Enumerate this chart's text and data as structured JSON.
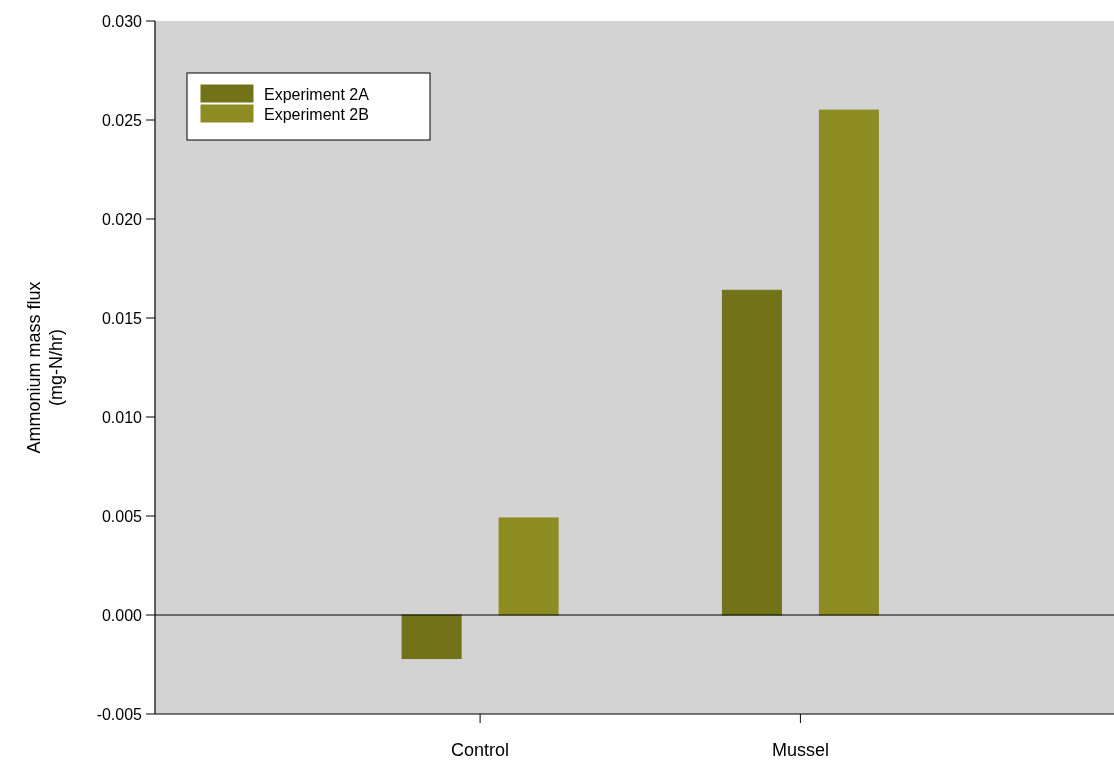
{
  "chart_data": {
    "type": "bar",
    "ylabel": "Ammonium mass flux\n(mg-N/hr)",
    "categories": [
      "Control",
      "Mussel"
    ],
    "series": [
      {
        "name": "Experiment 2A",
        "color": "#727219",
        "values": [
          -0.0022,
          0.0164
        ]
      },
      {
        "name": "Experiment 2B",
        "color": "#8c8c22",
        "values": [
          0.0049,
          0.0255
        ]
      }
    ],
    "ylim": [
      -0.005,
      0.03
    ],
    "yticks": [
      {
        "value": -0.005,
        "label": "-0.005"
      },
      {
        "value": 0,
        "label": "0.000"
      },
      {
        "value": 0.005,
        "label": "0.005"
      },
      {
        "value": 0.01,
        "label": "0.010"
      },
      {
        "value": 0.015,
        "label": "0.015"
      },
      {
        "value": 0.02,
        "label": "0.020"
      },
      {
        "value": 0.025,
        "label": "0.025"
      },
      {
        "value": 0.03,
        "label": "0.030"
      }
    ],
    "ref_lines": [
      {
        "axis": "y",
        "value": 0,
        "color": "#000000"
      }
    ],
    "grid": false,
    "legend": "top left"
  }
}
